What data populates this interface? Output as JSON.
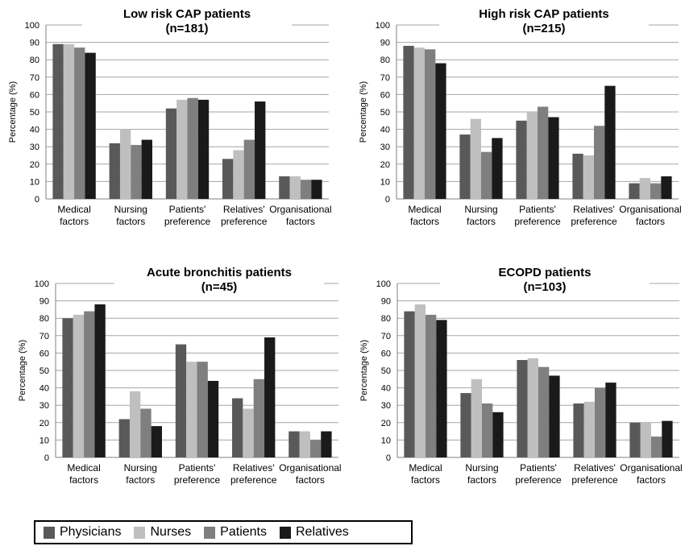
{
  "colors": {
    "physicians": "#595959",
    "nurses": "#bfbfbf",
    "patients": "#7f7f7f",
    "relatives": "#1a1a1a",
    "grid": "#a6a6a6"
  },
  "legend": [
    {
      "name": "Physicians",
      "color": "#595959"
    },
    {
      "name": "Nurses",
      "color": "#bfbfbf"
    },
    {
      "name": "Patients",
      "color": "#7f7f7f"
    },
    {
      "name": "Relatives",
      "color": "#1a1a1a"
    }
  ],
  "chart_data": [
    {
      "type": "bar",
      "title": "Low risk CAP patients",
      "subtitle": "(n=181)",
      "ylabel": "Percentage (%)",
      "ylim": [
        0,
        100
      ],
      "yticks": [
        0,
        10,
        20,
        30,
        40,
        50,
        60,
        70,
        80,
        90,
        100
      ],
      "categories": [
        [
          "Medical",
          "factors"
        ],
        [
          "Nursing",
          "factors"
        ],
        [
          "Patients'",
          "preference"
        ],
        [
          "Relatives'",
          "preference"
        ],
        [
          "Organisational",
          "factors"
        ]
      ],
      "series": [
        {
          "name": "Physicians",
          "values": [
            89,
            32,
            52,
            23,
            13
          ]
        },
        {
          "name": "Nurses",
          "values": [
            89,
            40,
            57,
            28,
            13
          ]
        },
        {
          "name": "Patients",
          "values": [
            87,
            31,
            58,
            34,
            11
          ]
        },
        {
          "name": "Relatives",
          "values": [
            84,
            34,
            57,
            56,
            11
          ]
        }
      ]
    },
    {
      "type": "bar",
      "title": "High risk CAP patients",
      "subtitle": "(n=215)",
      "ylabel": "Percentage (%)",
      "ylim": [
        0,
        100
      ],
      "yticks": [
        0,
        10,
        20,
        30,
        40,
        50,
        60,
        70,
        80,
        90,
        100
      ],
      "categories": [
        [
          "Medical",
          "factors"
        ],
        [
          "Nursing",
          "factors"
        ],
        [
          "Patients'",
          "preference"
        ],
        [
          "Relatives'",
          "preference"
        ],
        [
          "Organisational",
          "factors"
        ]
      ],
      "series": [
        {
          "name": "Physicians",
          "values": [
            88,
            37,
            45,
            26,
            9
          ]
        },
        {
          "name": "Nurses",
          "values": [
            87,
            46,
            50,
            25,
            12
          ]
        },
        {
          "name": "Patients",
          "values": [
            86,
            27,
            53,
            42,
            9
          ]
        },
        {
          "name": "Relatives",
          "values": [
            78,
            35,
            47,
            65,
            13
          ]
        }
      ]
    },
    {
      "type": "bar",
      "title": "Acute bronchitis patients",
      "subtitle": "(n=45)",
      "ylabel": "Percentage (%)",
      "ylim": [
        0,
        100
      ],
      "yticks": [
        0,
        10,
        20,
        30,
        40,
        50,
        60,
        70,
        80,
        90,
        100
      ],
      "categories": [
        [
          "Medical",
          "factors"
        ],
        [
          "Nursing",
          "factors"
        ],
        [
          "Patients'",
          "preference"
        ],
        [
          "Relatives'",
          "preference"
        ],
        [
          "Organisational",
          "factors"
        ]
      ],
      "series": [
        {
          "name": "Physicians",
          "values": [
            80,
            22,
            65,
            34,
            15
          ]
        },
        {
          "name": "Nurses",
          "values": [
            82,
            38,
            55,
            28,
            15
          ]
        },
        {
          "name": "Patients",
          "values": [
            84,
            28,
            55,
            45,
            10
          ]
        },
        {
          "name": "Relatives",
          "values": [
            88,
            18,
            44,
            69,
            15
          ]
        }
      ]
    },
    {
      "type": "bar",
      "title": "ECOPD patients",
      "subtitle": "(n=103)",
      "ylabel": "Percentage (%)",
      "ylim": [
        0,
        100
      ],
      "yticks": [
        0,
        10,
        20,
        30,
        40,
        50,
        60,
        70,
        80,
        90,
        100
      ],
      "categories": [
        [
          "Medical",
          "factors"
        ],
        [
          "Nursing",
          "factors"
        ],
        [
          "Patients'",
          "preference"
        ],
        [
          "Relatives'",
          "preference"
        ],
        [
          "Organisational",
          "factors"
        ]
      ],
      "series": [
        {
          "name": "Physicians",
          "values": [
            84,
            37,
            56,
            31,
            20
          ]
        },
        {
          "name": "Nurses",
          "values": [
            88,
            45,
            57,
            32,
            20
          ]
        },
        {
          "name": "Patients",
          "values": [
            82,
            31,
            52,
            40,
            12
          ]
        },
        {
          "name": "Relatives",
          "values": [
            79,
            26,
            47,
            43,
            21
          ]
        }
      ]
    }
  ]
}
